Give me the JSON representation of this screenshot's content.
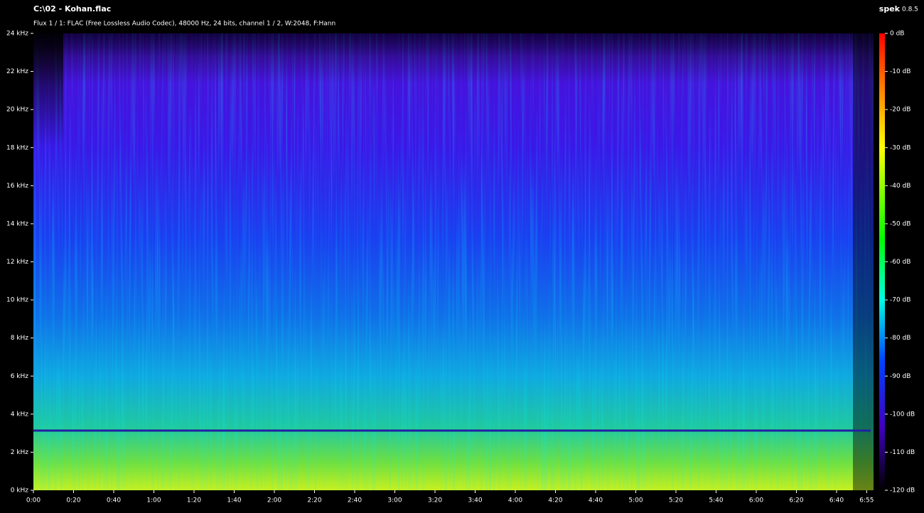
{
  "window": {
    "title": "C:\\02 - Kohan.flac",
    "app": "spek",
    "version": "0.8.5",
    "info": "Flux 1 / 1: FLAC (Free Lossless Audio Codec), 48000 Hz, 24 bits, channel 1 / 2, W:2048, F:Hann"
  },
  "frequency_axis": [
    "0 kHz",
    "2 kHz",
    "4 kHz",
    "6 kHz",
    "8 kHz",
    "10 kHz",
    "12 kHz",
    "14 kHz",
    "16 kHz",
    "18 kHz",
    "20 kHz",
    "22 kHz",
    "24 kHz"
  ],
  "time_axis": [
    "0:00",
    "0:20",
    "0:40",
    "1:00",
    "1:20",
    "1:40",
    "2:00",
    "2:20",
    "2:40",
    "3:00",
    "3:20",
    "3:40",
    "4:00",
    "4:20",
    "4:40",
    "5:00",
    "5:20",
    "5:40",
    "6:00",
    "6:20",
    "6:40",
    "6:55"
  ],
  "level_scale": [
    "0 dB",
    "-10 dB",
    "-20 dB",
    "-30 dB",
    "-40 dB",
    "-50 dB",
    "-60 dB",
    "-70 dB",
    "-80 dB",
    "-90 dB",
    "-100 dB",
    "-110 dB",
    "-120 dB"
  ]
}
